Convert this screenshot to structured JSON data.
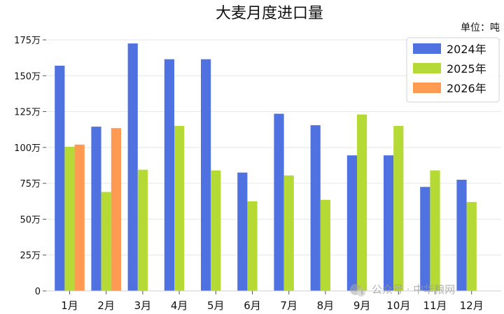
{
  "chart_data": {
    "type": "bar",
    "title": "大麦月度进口量",
    "unit_label": "单位：吨",
    "categories": [
      "1月",
      "2月",
      "3月",
      "4月",
      "5月",
      "6月",
      "7月",
      "8月",
      "9月",
      "10月",
      "11月",
      "12月"
    ],
    "series": [
      {
        "name": "2024年",
        "color": "#4f72e0",
        "values": [
          1570000,
          1145000,
          1725000,
          1615000,
          1615000,
          825000,
          1235000,
          1155000,
          945000,
          945000,
          725000,
          775000
        ]
      },
      {
        "name": "2025年",
        "color": "#b5d935",
        "values": [
          1005000,
          690000,
          845000,
          1150000,
          840000,
          625000,
          805000,
          635000,
          1230000,
          1150000,
          840000,
          620000
        ]
      },
      {
        "name": "2026年",
        "color": "#ff9a52",
        "values": [
          1020000,
          1135000,
          null,
          null,
          null,
          null,
          null,
          null,
          null,
          null,
          null,
          null
        ]
      }
    ],
    "yticks": [
      0,
      250000,
      500000,
      750000,
      1000000,
      1250000,
      1500000,
      1750000
    ],
    "ytick_labels": [
      "0",
      "25万",
      "50万",
      "75万",
      "100万",
      "125万",
      "150万",
      "175万"
    ],
    "ylim": [
      0,
      1760000
    ],
    "grid": "horizontal",
    "legend_position": "top-right"
  },
  "watermark": {
    "text": "公众号 · 中华粮网",
    "icon": "wechat-icon"
  }
}
